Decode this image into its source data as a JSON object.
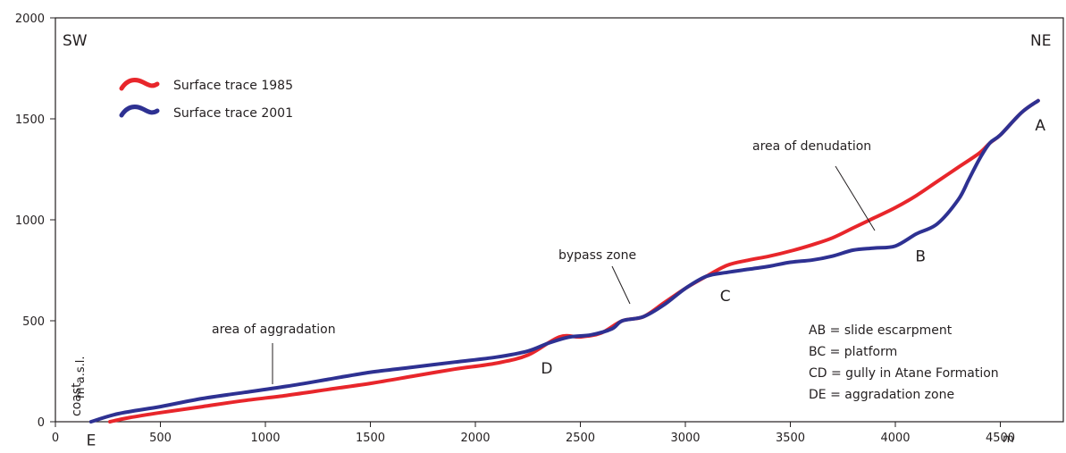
{
  "chart_data": {
    "type": "line",
    "title": "",
    "xlabel": "m",
    "ylabel": "m a.s.l.",
    "xlim": [
      0,
      4800
    ],
    "ylim": [
      0,
      2000
    ],
    "x_ticks": [
      0,
      500,
      1000,
      1500,
      2000,
      2500,
      3000,
      3500,
      4000,
      4500
    ],
    "y_ticks": [
      0,
      500,
      1000,
      1500,
      2000
    ],
    "grid": false,
    "legend_position": "top-left",
    "series": [
      {
        "name": "Surface trace 1985",
        "color": "#e8262b",
        "points": [
          [
            260,
            0
          ],
          [
            350,
            20
          ],
          [
            500,
            45
          ],
          [
            700,
            75
          ],
          [
            900,
            105
          ],
          [
            1100,
            130
          ],
          [
            1300,
            160
          ],
          [
            1500,
            190
          ],
          [
            1700,
            225
          ],
          [
            1900,
            260
          ],
          [
            2100,
            290
          ],
          [
            2250,
            330
          ],
          [
            2400,
            420
          ],
          [
            2500,
            420
          ],
          [
            2600,
            440
          ],
          [
            2700,
            500
          ],
          [
            2800,
            520
          ],
          [
            2900,
            590
          ],
          [
            3000,
            660
          ],
          [
            3100,
            720
          ],
          [
            3200,
            775
          ],
          [
            3300,
            800
          ],
          [
            3400,
            820
          ],
          [
            3500,
            845
          ],
          [
            3600,
            875
          ],
          [
            3700,
            910
          ],
          [
            3800,
            960
          ],
          [
            3900,
            1010
          ],
          [
            4000,
            1060
          ],
          [
            4100,
            1120
          ],
          [
            4200,
            1190
          ],
          [
            4300,
            1260
          ],
          [
            4400,
            1330
          ],
          [
            4450,
            1380
          ],
          [
            4500,
            1420
          ],
          [
            4600,
            1530
          ],
          [
            4680,
            1590
          ]
        ]
      },
      {
        "name": "Surface trace 2001",
        "color": "#2e3192",
        "points": [
          [
            170,
            0
          ],
          [
            300,
            40
          ],
          [
            500,
            75
          ],
          [
            700,
            115
          ],
          [
            900,
            145
          ],
          [
            1100,
            175
          ],
          [
            1300,
            210
          ],
          [
            1500,
            245
          ],
          [
            1700,
            270
          ],
          [
            1900,
            295
          ],
          [
            2100,
            320
          ],
          [
            2250,
            350
          ],
          [
            2350,
            390
          ],
          [
            2450,
            420
          ],
          [
            2550,
            430
          ],
          [
            2650,
            460
          ],
          [
            2700,
            500
          ],
          [
            2800,
            520
          ],
          [
            2900,
            580
          ],
          [
            3000,
            660
          ],
          [
            3100,
            720
          ],
          [
            3200,
            740
          ],
          [
            3300,
            755
          ],
          [
            3400,
            770
          ],
          [
            3500,
            790
          ],
          [
            3600,
            800
          ],
          [
            3700,
            820
          ],
          [
            3800,
            850
          ],
          [
            3900,
            860
          ],
          [
            4000,
            870
          ],
          [
            4100,
            930
          ],
          [
            4200,
            980
          ],
          [
            4300,
            1100
          ],
          [
            4350,
            1200
          ],
          [
            4400,
            1300
          ],
          [
            4450,
            1380
          ],
          [
            4500,
            1420
          ],
          [
            4600,
            1530
          ],
          [
            4680,
            1590
          ]
        ]
      }
    ],
    "annotations": {
      "direction_left": "SW",
      "direction_right": "NE",
      "coast": "coast",
      "aggradation": "area of aggradation",
      "bypass": "bypass zone",
      "denudation": "area of denudation",
      "points": [
        {
          "label": "A",
          "x": 4690,
          "y": 1470
        },
        {
          "label": "B",
          "x": 4120,
          "y": 820
        },
        {
          "label": "C",
          "x": 3190,
          "y": 625
        },
        {
          "label": "D",
          "x": 2340,
          "y": 265
        },
        {
          "label": "E",
          "x": 170,
          "y": -90
        }
      ],
      "key": [
        "AB = slide escarpment",
        "BC = platform",
        "CD = gully in Atane Formation",
        "DE = aggradation zone"
      ]
    }
  }
}
